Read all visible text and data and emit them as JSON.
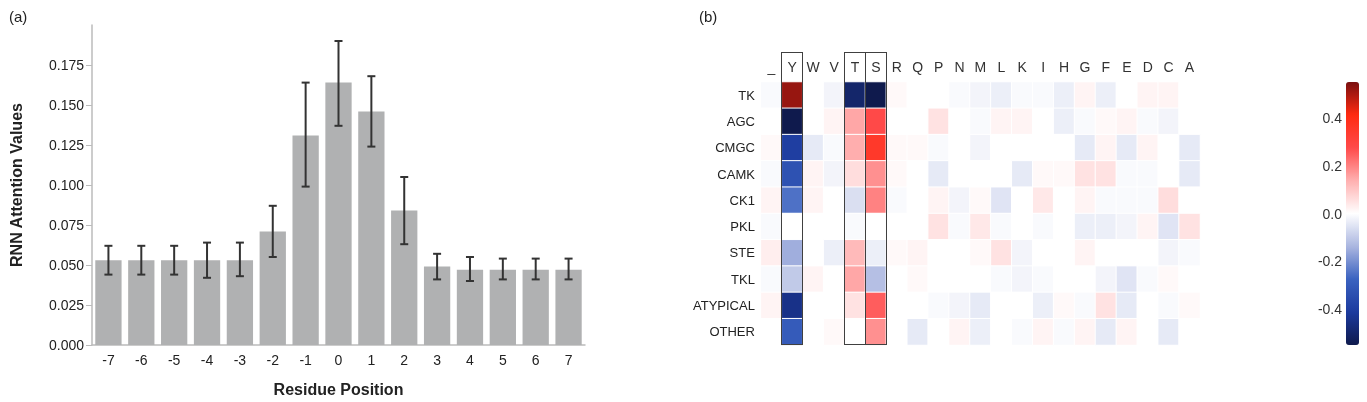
{
  "chart_data": [
    {
      "type": "bar",
      "title": "(a)",
      "xlabel": "Residue Position",
      "ylabel": "RNN Attention Values",
      "categories": [
        "-7",
        "-6",
        "-5",
        "-4",
        "-3",
        "-2",
        "-1",
        "0",
        "1",
        "2",
        "3",
        "4",
        "5",
        "6",
        "7"
      ],
      "values": [
        0.053,
        0.053,
        0.053,
        0.053,
        0.053,
        0.071,
        0.131,
        0.164,
        0.146,
        0.084,
        0.049,
        0.047,
        0.047,
        0.047,
        0.047
      ],
      "errors": [
        [
          0.044,
          0.062
        ],
        [
          0.044,
          0.062
        ],
        [
          0.044,
          0.062
        ],
        [
          0.042,
          0.064
        ],
        [
          0.043,
          0.064
        ],
        [
          0.055,
          0.087
        ],
        [
          0.099,
          0.164
        ],
        [
          0.137,
          0.19
        ],
        [
          0.124,
          0.168
        ],
        [
          0.063,
          0.105
        ],
        [
          0.041,
          0.057
        ],
        [
          0.04,
          0.055
        ],
        [
          0.041,
          0.054
        ],
        [
          0.041,
          0.054
        ],
        [
          0.041,
          0.054
        ]
      ],
      "color": "#b0b1b2",
      "ylim": [
        0,
        0.2
      ],
      "yticks": [
        {
          "value": 0,
          "label": "0.000"
        },
        {
          "value": 0.025,
          "label": "0.025"
        },
        {
          "value": 0.05,
          "label": "0.050"
        },
        {
          "value": 0.075,
          "label": "0.075"
        },
        {
          "value": 0.1,
          "label": "0.100"
        },
        {
          "value": 0.125,
          "label": "0.125"
        },
        {
          "value": 0.15,
          "label": "0.150"
        },
        {
          "value": 0.175,
          "label": "0.175"
        }
      ],
      "grid": false
    },
    {
      "type": "heatmap",
      "title": "(b)",
      "categories": [
        "_",
        "Y",
        "W",
        "V",
        "T",
        "S",
        "R",
        "Q",
        "P",
        "N",
        "M",
        "L",
        "K",
        "I",
        "H",
        "G",
        "F",
        "E",
        "D",
        "C",
        "A"
      ],
      "y_categories": [
        "TK",
        "AGC",
        "CMGC",
        "CAMK",
        "CK1",
        "PKL",
        "STE",
        "TKL",
        "ATYPICAL",
        "OTHER"
      ],
      "cells": [
        [
          -0.01,
          0.52,
          0,
          -0.02,
          -0.5,
          -0.55,
          0.01,
          0,
          0,
          -0.01,
          -0.02,
          -0.03,
          -0.01,
          -0.01,
          -0.03,
          0.02,
          -0.03,
          0,
          0.02,
          0.02,
          0
        ],
        [
          0,
          -0.55,
          0,
          0.02,
          0.15,
          0.28,
          0,
          0,
          0.05,
          0,
          -0.01,
          0.02,
          0.02,
          0,
          -0.03,
          -0.01,
          0.01,
          0.02,
          -0.01,
          -0.02,
          0
        ],
        [
          0.01,
          -0.4,
          -0.04,
          -0.01,
          0.14,
          0.35,
          0.01,
          0.01,
          -0.01,
          0,
          -0.02,
          0,
          0,
          0,
          0,
          -0.04,
          0.02,
          -0.04,
          0.02,
          0,
          -0.04
        ],
        [
          -0.01,
          -0.33,
          0.02,
          -0.02,
          0.06,
          0.18,
          0.01,
          0,
          -0.04,
          0,
          0,
          0,
          -0.04,
          0.01,
          0.01,
          0.05,
          0.05,
          -0.01,
          -0.01,
          0,
          -0.04
        ],
        [
          0.02,
          -0.25,
          0.02,
          0,
          -0.06,
          0.2,
          -0.01,
          0,
          0.02,
          -0.02,
          0.01,
          -0.05,
          0,
          0.04,
          0,
          0.02,
          -0.01,
          -0.01,
          -0.01,
          0.06,
          0
        ],
        [
          -0.01,
          0,
          0,
          0,
          -0.01,
          0,
          0,
          0,
          0.05,
          -0.01,
          0.04,
          -0.01,
          0,
          -0.01,
          0,
          -0.03,
          -0.03,
          -0.02,
          0.02,
          -0.05,
          0.05
        ],
        [
          0.03,
          -0.15,
          0,
          -0.03,
          0.12,
          -0.03,
          0.01,
          0.02,
          0,
          0,
          0.01,
          0.05,
          -0.02,
          0,
          0,
          0.02,
          0,
          0,
          0,
          -0.02,
          -0.01
        ],
        [
          -0.01,
          -0.1,
          0.02,
          0,
          0.15,
          -0.12,
          0,
          0.01,
          0,
          0,
          0,
          -0.01,
          -0.02,
          -0.01,
          0,
          0,
          -0.02,
          -0.05,
          -0.01,
          0.01,
          0
        ],
        [
          0.02,
          -0.45,
          0,
          0,
          0.05,
          0.25,
          0,
          0,
          -0.01,
          -0.02,
          -0.04,
          0,
          0,
          -0.03,
          0.01,
          -0.01,
          0.05,
          -0.04,
          0,
          -0.01,
          0.01
        ],
        [
          0,
          -0.3,
          0,
          0.01,
          0,
          0.18,
          0,
          -0.04,
          0,
          0.02,
          -0.03,
          0,
          -0.01,
          0.02,
          -0.01,
          0.02,
          -0.04,
          0.02,
          0,
          -0.04,
          0
        ]
      ],
      "clim": [
        -0.55,
        0.55
      ],
      "cticks": [
        -0.4,
        -0.2,
        {
          "value": 0,
          "label": "0.0"
        },
        0.2,
        0.4
      ]
    }
  ]
}
